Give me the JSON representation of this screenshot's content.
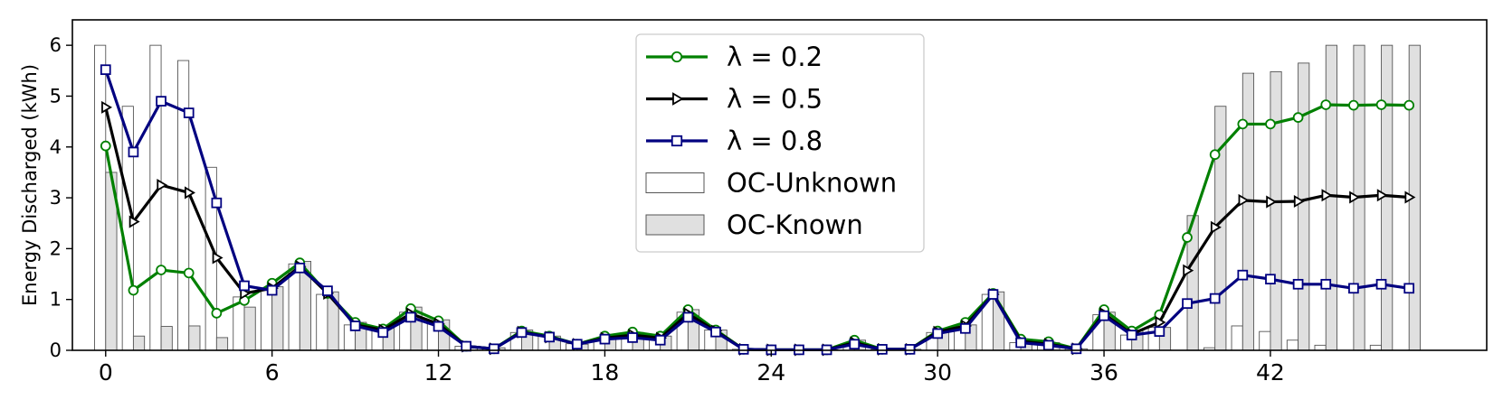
{
  "chart_data": {
    "type": "bar+line",
    "ylabel": "Energy Discharged (kWh)",
    "xlabel": "",
    "xlim": [
      -1.2,
      49.8
    ],
    "ylim": [
      0,
      6.5
    ],
    "x_ticks": [
      0,
      6,
      12,
      18,
      24,
      30,
      36,
      42
    ],
    "y_ticks": [
      0,
      1,
      2,
      3,
      4,
      5,
      6
    ],
    "legend_position": "top-center",
    "grid": false,
    "x": [
      0,
      1,
      2,
      3,
      4,
      5,
      6,
      7,
      8,
      9,
      10,
      11,
      12,
      13,
      14,
      15,
      16,
      17,
      18,
      19,
      20,
      21,
      22,
      23,
      24,
      25,
      26,
      27,
      28,
      29,
      30,
      31,
      32,
      33,
      34,
      35,
      36,
      37,
      38,
      39,
      40,
      41,
      42,
      43,
      44,
      45,
      46,
      47
    ],
    "bars": [
      {
        "name": "OC-Unknown",
        "color": "#ffffff",
        "edge": "#555555",
        "values": [
          6.0,
          4.8,
          6.0,
          5.7,
          3.6,
          1.05,
          1.2,
          1.7,
          1.1,
          0.5,
          0.4,
          0.75,
          0.55,
          0.08,
          0.04,
          0.35,
          0.28,
          0.13,
          0.22,
          0.3,
          0.22,
          0.75,
          0.4,
          0.02,
          0.01,
          0.01,
          0.01,
          0.1,
          0.02,
          0.02,
          0.35,
          0.45,
          1.1,
          0.15,
          0.1,
          0.03,
          0.7,
          0.3,
          0.45,
          0.0,
          0.05,
          0.48,
          0.37,
          0.2,
          0.1,
          0.0,
          0.1,
          0.0
        ]
      },
      {
        "name": "OC-Known",
        "color": "#e0e0e0",
        "edge": "#555555",
        "values": [
          3.5,
          0.28,
          0.47,
          0.48,
          0.25,
          0.85,
          1.25,
          1.75,
          1.15,
          0.55,
          0.45,
          0.85,
          0.6,
          0.08,
          0.05,
          0.4,
          0.28,
          0.12,
          0.28,
          0.35,
          0.28,
          0.8,
          0.4,
          0.02,
          0.01,
          0.01,
          0.01,
          0.2,
          0.02,
          0.02,
          0.4,
          0.5,
          1.15,
          0.2,
          0.15,
          0.03,
          0.75,
          0.4,
          0.45,
          2.65,
          4.8,
          5.45,
          5.48,
          5.65,
          6.0,
          6.0,
          6.0,
          6.0
        ]
      }
    ],
    "series": [
      {
        "name": "λ = 0.2",
        "color": "#008000",
        "marker": "circle",
        "values": [
          4.02,
          1.18,
          1.58,
          1.52,
          0.73,
          0.98,
          1.32,
          1.72,
          1.12,
          0.55,
          0.42,
          0.82,
          0.58,
          0.08,
          0.03,
          0.38,
          0.28,
          0.12,
          0.28,
          0.36,
          0.28,
          0.8,
          0.4,
          0.02,
          0.01,
          0.01,
          0.01,
          0.2,
          0.02,
          0.02,
          0.38,
          0.55,
          1.12,
          0.22,
          0.17,
          0.03,
          0.8,
          0.38,
          0.7,
          2.22,
          3.85,
          4.45,
          4.45,
          4.58,
          4.83,
          4.82,
          4.83,
          4.82
        ]
      },
      {
        "name": "λ = 0.5",
        "color": "#000000",
        "marker": "triangle-right",
        "values": [
          4.78,
          2.53,
          3.25,
          3.1,
          1.82,
          1.12,
          1.22,
          1.65,
          1.12,
          0.5,
          0.4,
          0.72,
          0.52,
          0.08,
          0.03,
          0.36,
          0.26,
          0.12,
          0.24,
          0.3,
          0.24,
          0.72,
          0.38,
          0.02,
          0.01,
          0.01,
          0.01,
          0.15,
          0.02,
          0.02,
          0.36,
          0.48,
          1.1,
          0.18,
          0.12,
          0.03,
          0.72,
          0.32,
          0.55,
          1.57,
          2.42,
          2.95,
          2.92,
          2.93,
          3.05,
          3.01,
          3.05,
          3.01
        ]
      },
      {
        "name": "λ = 0.8",
        "color": "#000080",
        "marker": "square",
        "values": [
          5.52,
          3.9,
          4.9,
          4.67,
          2.9,
          1.27,
          1.18,
          1.62,
          1.17,
          0.48,
          0.35,
          0.65,
          0.47,
          0.08,
          0.03,
          0.35,
          0.26,
          0.12,
          0.22,
          0.25,
          0.2,
          0.65,
          0.36,
          0.02,
          0.01,
          0.01,
          0.01,
          0.12,
          0.02,
          0.02,
          0.33,
          0.43,
          1.1,
          0.15,
          0.1,
          0.03,
          0.68,
          0.3,
          0.37,
          0.92,
          1.02,
          1.48,
          1.4,
          1.3,
          1.3,
          1.22,
          1.3,
          1.22
        ]
      }
    ]
  }
}
